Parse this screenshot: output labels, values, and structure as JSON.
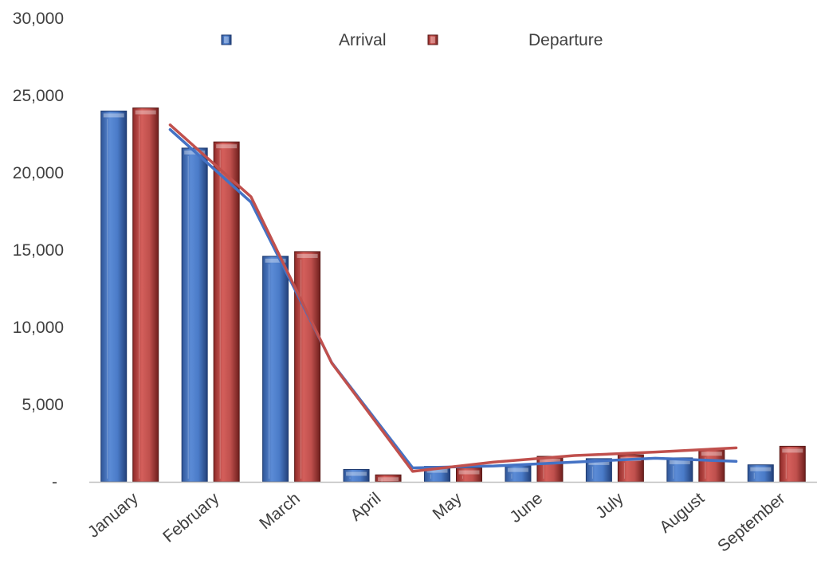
{
  "chart_data": {
    "type": "bar",
    "categories": [
      "January",
      "February",
      "March",
      "April",
      "May",
      "June",
      "July",
      "August",
      "September"
    ],
    "series": [
      {
        "name": "Arrival",
        "values": [
          24000,
          21600,
          14600,
          800,
          1000,
          1050,
          1500,
          1550,
          1100
        ],
        "color": "#4472C4"
      },
      {
        "name": "Departure",
        "values": [
          24200,
          22000,
          14900,
          450,
          900,
          1650,
          1750,
          2100,
          2300
        ],
        "color": "#C0504D"
      }
    ],
    "trendlines": [
      {
        "series": "Arrival",
        "type": "moving-average",
        "values": [
          22800,
          18100,
          7700,
          900,
          1025,
          1275,
          1525,
          1325
        ],
        "color": "#4472C4"
      },
      {
        "series": "Departure",
        "type": "moving-average",
        "values": [
          23100,
          18450,
          7675,
          675,
          1275,
          1700,
          1925,
          2200
        ],
        "color": "#C0504D"
      }
    ],
    "ylim": [
      0,
      30000
    ],
    "yticks": [
      0,
      5000,
      10000,
      15000,
      20000,
      25000,
      30000
    ],
    "ytick_labels": [
      "-",
      "5,000",
      "10,000",
      "15,000",
      "20,000",
      "25,000",
      "30,000"
    ],
    "legend_position": "top",
    "grid": false
  }
}
